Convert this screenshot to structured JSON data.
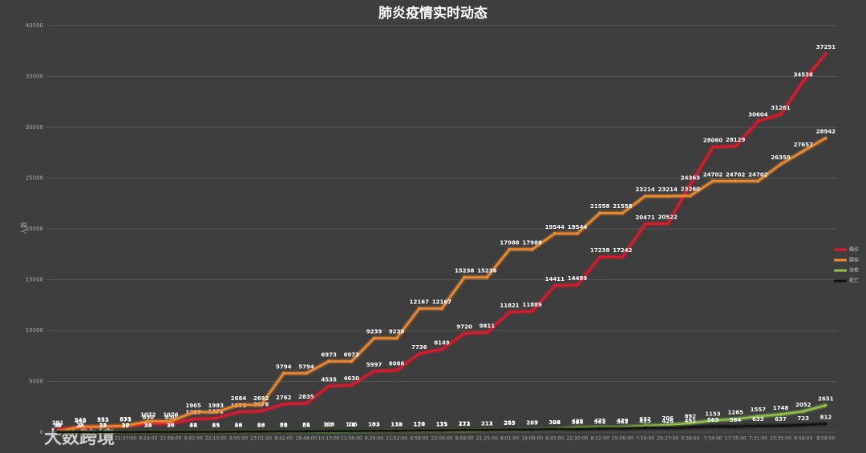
{
  "chart_data": {
    "type": "line",
    "title": "肺炎疫情实时动态",
    "y_label": "人数",
    "watermark": "大数跨境",
    "categories": [
      null,
      null,
      null,
      "21:37:00",
      "9:24:00",
      "21:58:00",
      "9:42:00",
      "22:13:00",
      "9:55:00",
      "23:01:00",
      "8:42:00",
      "18:48:00",
      "10:13:00",
      "11:06:00",
      "8:26:00",
      "21:52:00",
      "8:58:00",
      "23:06:00",
      "8:58:00",
      "21:25:00",
      "8:01:00",
      "19:09:00",
      "6:45:00",
      "22:20:00",
      "8:52:00",
      "15:06:00",
      "7:56:00",
      "20:27:00",
      "8:38:00",
      "7:54:00",
      "17:35:00",
      "7:31:00",
      "23:35:00",
      "8:58:00",
      "8:58:00"
    ],
    "series": [
      {
        "name": "确诊",
        "color": "#e0182b",
        "values": [
          291,
          440,
          571,
          571,
          830,
          830,
          1287,
          1372,
          1975,
          2076,
          2762,
          2835,
          4535,
          4630,
          5997,
          6086,
          7736,
          8149,
          9720,
          9811,
          11821,
          11889,
          14411,
          14489,
          17238,
          17242,
          20471,
          20522,
          24363,
          28060,
          28129,
          30604,
          31261,
          34538,
          37251
        ]
      },
      {
        "name": "疑似",
        "color": "#f08a2e",
        "values": [
          54,
          543,
          553,
          635,
          1072,
          1076,
          1965,
          1983,
          2684,
          2692,
          5794,
          5794,
          6973,
          6973,
          9239,
          9239,
          12167,
          12167,
          15238,
          15238,
          17988,
          17988,
          19544,
          19544,
          21558,
          21558,
          23214,
          23214,
          23260,
          24702,
          24702,
          24702,
          26359,
          27657,
          28942
        ]
      },
      {
        "name": "治愈",
        "color": "#8fc24a",
        "values": [
          25,
          25,
          28,
          30,
          34,
          38,
          38,
          39,
          49,
          49,
          51,
          56,
          60,
          71,
          103,
          118,
          124,
          135,
          171,
          211,
          243,
          267,
          328,
          429,
          475,
          479,
          632,
          706,
          892,
          1153,
          1285,
          1557,
          1748,
          2052,
          2651
        ]
      },
      {
        "name": "死亡",
        "color": "#111111",
        "values": [
          6,
          9,
          17,
          17,
          25,
          26,
          41,
          41,
          56,
          56,
          80,
          81,
          106,
          106,
          132,
          132,
          170,
          171,
          213,
          213,
          259,
          259,
          304,
          304,
          361,
          361,
          425,
          426,
          491,
          563,
          564,
          633,
          637,
          723,
          812
        ]
      }
    ],
    "ylim": [
      0,
      40000
    ],
    "yticks": [
      0,
      5000,
      10000,
      15000,
      20000,
      25000,
      30000,
      35000,
      40000
    ],
    "grid": true,
    "legend": "right"
  }
}
